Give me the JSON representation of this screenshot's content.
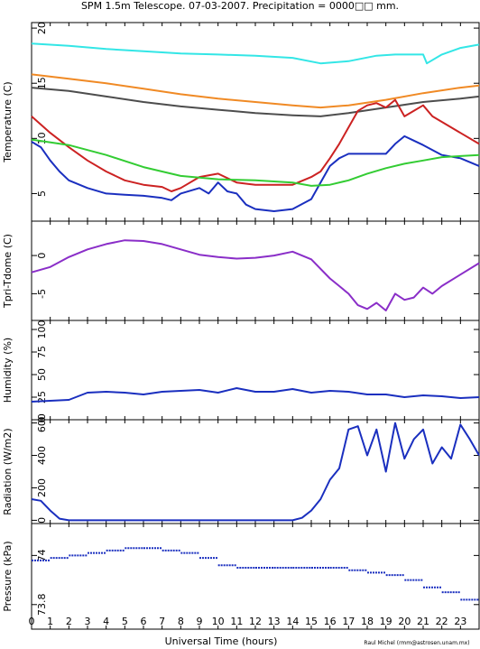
{
  "title": "SPM 1.5m Telescope. 07-03-2007. Precipitation = 0000□□ mm.",
  "xlabel": "Universal Time (hours)",
  "credit": "Raul Michel (rmm@astrosen.unam.mx)",
  "xticks": [
    "0",
    "1",
    "2",
    "3",
    "4",
    "5",
    "6",
    "7",
    "8",
    "9",
    "10",
    "11",
    "12",
    "13",
    "14",
    "15",
    "16",
    "17",
    "18",
    "19",
    "20",
    "21",
    "22",
    "23"
  ],
  "colors": {
    "cyan": "#33e6e6",
    "orange": "#f08a25",
    "gray": "#4d4d4d",
    "red": "#cc2222",
    "blue": "#1a2fbf",
    "green": "#33cc33",
    "purple": "#8a2ec8"
  },
  "chart_data": [
    {
      "type": "line",
      "ylabel": "Temperature (C)",
      "ylim": [
        2.5,
        20.5
      ],
      "yticks": [
        5,
        10,
        15,
        20
      ],
      "xlim": [
        0,
        24
      ],
      "series": [
        {
          "color": "#33e6e6",
          "style": "line",
          "x": [
            0,
            2,
            4,
            6,
            8,
            10,
            12,
            14,
            15.5,
            17,
            18.5,
            19.5,
            20.5,
            21,
            21.2,
            22,
            23,
            24
          ],
          "y": [
            18.6,
            18.4,
            18.1,
            17.9,
            17.7,
            17.6,
            17.5,
            17.3,
            16.8,
            17.0,
            17.5,
            17.6,
            17.6,
            17.6,
            16.8,
            17.6,
            18.2,
            18.5
          ]
        },
        {
          "color": "#f08a25",
          "style": "line",
          "x": [
            0,
            2,
            4,
            6,
            8,
            10,
            12,
            14,
            15.5,
            17,
            19,
            21,
            23,
            24
          ],
          "y": [
            15.8,
            15.4,
            15.0,
            14.5,
            14.0,
            13.6,
            13.3,
            13.0,
            12.8,
            13.0,
            13.5,
            14.1,
            14.6,
            14.8
          ]
        },
        {
          "color": "#4d4d4d",
          "style": "line",
          "x": [
            0,
            2,
            4,
            6,
            8,
            10,
            12,
            14,
            15.5,
            17,
            19,
            21,
            23,
            24
          ],
          "y": [
            14.6,
            14.3,
            13.8,
            13.3,
            12.9,
            12.6,
            12.3,
            12.1,
            12.0,
            12.3,
            12.8,
            13.3,
            13.6,
            13.8
          ]
        },
        {
          "color": "#cc2222",
          "style": "line",
          "x": [
            0,
            1,
            2,
            3,
            4,
            5,
            6,
            7,
            7.5,
            8,
            9,
            10,
            11,
            12,
            13,
            14,
            15,
            15.5,
            16,
            16.5,
            17,
            17.5,
            18,
            18.5,
            19,
            19.5,
            20,
            20.5,
            21,
            21.5,
            22,
            23,
            24
          ],
          "y": [
            12.0,
            10.5,
            9.2,
            8.0,
            7.0,
            6.2,
            5.8,
            5.6,
            5.2,
            5.5,
            6.5,
            6.8,
            6.0,
            5.8,
            5.8,
            5.8,
            6.5,
            7.0,
            8.2,
            9.5,
            11.0,
            12.5,
            13.0,
            13.2,
            12.8,
            13.5,
            12.0,
            12.5,
            13.0,
            12.0,
            11.5,
            10.5,
            9.5
          ]
        },
        {
          "color": "#1a2fbf",
          "style": "line",
          "x": [
            0,
            0.5,
            1,
            1.5,
            2,
            3,
            4,
            5,
            6,
            7,
            7.5,
            8,
            9,
            9.5,
            10,
            10.5,
            11,
            11.5,
            12,
            13,
            14,
            15,
            15.5,
            16,
            16.5,
            17,
            18,
            19,
            19.5,
            20,
            20.5,
            21,
            22,
            23,
            24
          ],
          "y": [
            9.7,
            9.2,
            8.0,
            7.0,
            6.2,
            5.5,
            5.0,
            4.9,
            4.8,
            4.6,
            4.4,
            5.0,
            5.5,
            5.0,
            6.0,
            5.2,
            5.0,
            4.0,
            3.6,
            3.4,
            3.6,
            4.5,
            6.0,
            7.5,
            8.2,
            8.6,
            8.6,
            8.6,
            9.5,
            10.2,
            9.8,
            9.4,
            8.5,
            8.2,
            7.5
          ]
        },
        {
          "color": "#33cc33",
          "style": "line",
          "x": [
            0,
            2,
            4,
            6,
            8,
            10,
            12,
            14,
            15,
            16,
            17,
            18,
            19,
            20,
            21,
            22,
            23,
            24
          ],
          "y": [
            9.9,
            9.4,
            8.5,
            7.4,
            6.6,
            6.3,
            6.2,
            6.0,
            5.7,
            5.8,
            6.2,
            6.8,
            7.3,
            7.7,
            8.0,
            8.3,
            8.4,
            8.5
          ]
        }
      ]
    },
    {
      "type": "line",
      "ylabel": "Tpri-Tdome (C)",
      "ylim": [
        -8.5,
        4.5
      ],
      "yticks": [
        0,
        -5
      ],
      "xlim": [
        0,
        24
      ],
      "series": [
        {
          "color": "#8a2ec8",
          "style": "line",
          "x": [
            0,
            1,
            2,
            3,
            4,
            5,
            6,
            7,
            8,
            9,
            10,
            11,
            12,
            13,
            14,
            15,
            16,
            16.5,
            17,
            17.5,
            18,
            18.5,
            19,
            19.5,
            20,
            20.5,
            21,
            21.5,
            22,
            23,
            24
          ],
          "y": [
            -2.2,
            -1.5,
            -0.2,
            0.8,
            1.5,
            2.0,
            1.9,
            1.5,
            0.8,
            0.1,
            -0.2,
            -0.4,
            -0.3,
            0.0,
            0.5,
            -0.5,
            -3.0,
            -4.0,
            -5.0,
            -6.5,
            -7.0,
            -6.2,
            -7.2,
            -5.0,
            -5.8,
            -5.5,
            -4.2,
            -5.0,
            -4.0,
            -2.5,
            -1.0
          ]
        }
      ]
    },
    {
      "type": "line",
      "ylabel": "Humidity (%)",
      "ylim": [
        0,
        110
      ],
      "yticks": [
        0,
        25,
        50,
        75,
        100
      ],
      "xlim": [
        0,
        24
      ],
      "series": [
        {
          "color": "#1a2fbf",
          "style": "line",
          "x": [
            0,
            2,
            3,
            4,
            5,
            6,
            7,
            8,
            9,
            10,
            11,
            12,
            13,
            14,
            15,
            16,
            17,
            18,
            19,
            20,
            21,
            22,
            23,
            24
          ],
          "y": [
            20,
            22,
            30,
            31,
            30,
            28,
            31,
            32,
            33,
            30,
            35,
            31,
            31,
            34,
            30,
            32,
            31,
            28,
            28,
            25,
            27,
            26,
            24,
            25
          ]
        }
      ]
    },
    {
      "type": "line",
      "ylabel": "Radiation (W/m2)",
      "ylim": [
        -20,
        620
      ],
      "yticks": [
        0,
        200,
        400,
        600
      ],
      "xlim": [
        0,
        24
      ],
      "series": [
        {
          "color": "#1a2fbf",
          "style": "line",
          "x": [
            0,
            0.5,
            1,
            1.5,
            2,
            4,
            6,
            8,
            10,
            12,
            14,
            14.5,
            15,
            15.5,
            16,
            16.5,
            17,
            17.5,
            18,
            18.5,
            19,
            19.5,
            20,
            20.5,
            21,
            21.5,
            22,
            22.5,
            23,
            23.5,
            24
          ],
          "y": [
            130,
            120,
            60,
            10,
            0,
            0,
            0,
            0,
            0,
            0,
            0,
            15,
            60,
            130,
            250,
            320,
            560,
            580,
            400,
            560,
            300,
            600,
            380,
            500,
            560,
            350,
            450,
            380,
            590,
            500,
            400
          ]
        }
      ]
    },
    {
      "type": "scatter",
      "ylabel": "Pressure (kPa)",
      "ylim": [
        73.7,
        74.13
      ],
      "yticks": [
        74,
        73.8
      ],
      "xlim": [
        0,
        24
      ],
      "series": [
        {
          "color": "#1a2fbf",
          "style": "dash",
          "x": [
            0,
            1,
            2,
            3,
            4,
            5,
            6,
            7,
            8,
            9,
            10,
            11,
            12,
            13,
            14,
            15,
            16,
            17,
            18,
            19,
            20,
            21,
            22,
            23,
            24
          ],
          "y": [
            73.98,
            73.99,
            74.0,
            74.01,
            74.02,
            74.03,
            74.03,
            74.02,
            74.01,
            73.99,
            73.96,
            73.95,
            73.95,
            73.95,
            73.95,
            73.95,
            73.95,
            73.94,
            73.93,
            73.92,
            73.9,
            73.87,
            73.85,
            73.82,
            73.82
          ]
        }
      ]
    }
  ]
}
